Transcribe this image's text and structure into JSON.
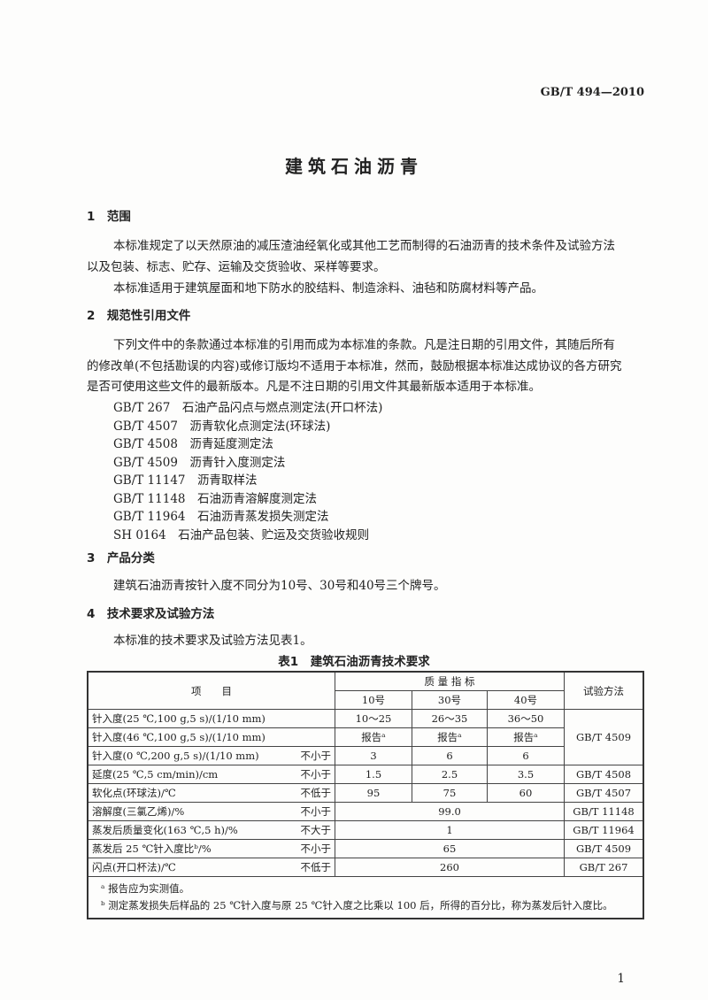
{
  "header": {
    "code": "GB/T 494—2010"
  },
  "title": "建筑石油沥青",
  "sections": [
    {
      "heading": "1　范围",
      "paragraphs": [
        "本标准规定了以天然原油的减压渣油经氧化或其他工艺而制得的石油沥青的技术条件及试验方法",
        "以及包装、标志、贮存、运输及交货验收、采样等要求。",
        "本标准适用于建筑屋面和地下防水的胶结料、制造涂料、油毡和防腐材料等产品。"
      ]
    },
    {
      "heading": "2　规范性引用文件",
      "paragraphs": [
        "下列文件中的条款通过本标准的引用而成为本标准的条款。凡是注日期的引用文件，其随后所有",
        "的修改单(不包括勘误的内容)或修订版均不适用于本标准，然而，鼓励根据本标准达成协议的各方研究",
        "是否可使用这些文件的最新版本。凡是不注日期的引用文件其最新版本适用于本标准。"
      ],
      "refs": [
        "GB/T 267　石油产品闪点与燃点测定法(开口杯法)",
        "GB/T 4507　沥青软化点测定法(环球法)",
        "GB/T 4508　沥青延度测定法",
        "GB/T 4509　沥青针入度测定法",
        "GB/T 11147　沥青取样法",
        "GB/T 11148　石油沥青溶解度测定法",
        "GB/T 11964　石油沥青蒸发损失测定法",
        "SH 0164　石油产品包装、贮运及交货验收规则"
      ]
    },
    {
      "heading": "3　产品分类",
      "paragraphs": [
        "建筑石油沥青按针入度不同分为10号、30号和40号三个牌号。"
      ]
    },
    {
      "heading": "4　技术要求及试验方法",
      "paragraphs": [
        "本标准的技术要求及试验方法见表1。"
      ]
    }
  ],
  "table": {
    "caption": "表1　建筑石油沥青技术要求",
    "head": {
      "item": "项　　目",
      "quality": "质 量 指 标",
      "grades": [
        "10号",
        "30号",
        "40号"
      ],
      "method": "试验方法"
    },
    "rows": [
      {
        "item": "针入度(25 ℃,100 g,5 s)/(1/10 mm)",
        "q": "",
        "v": [
          "10～25",
          "26～35",
          "36～50"
        ]
      },
      {
        "item": "针入度(46 ℃,100 g,5 s)/(1/10 mm)",
        "q": "",
        "v": [
          "报告ᵃ",
          "报告ᵃ",
          "报告ᵃ"
        ]
      },
      {
        "item": "针入度(0 ℃,200 g,5 s)/(1/10 mm)",
        "q": "不小于",
        "v": [
          "3",
          "6",
          "6"
        ]
      },
      {
        "item": "延度(25 ℃,5 cm/min)/cm",
        "q": "不小于",
        "v": [
          "1.5",
          "2.5",
          "3.5"
        ],
        "m": "GB/T 4508"
      },
      {
        "item": "软化点(环球法)/℃",
        "q": "不低于",
        "v": [
          "95",
          "75",
          "60"
        ],
        "m": "GB/T 4507"
      },
      {
        "item": "溶解度(三氯乙烯)/%",
        "q": "不小于",
        "v": "99.0",
        "m": "GB/T 11148"
      },
      {
        "item": "蒸发后质量变化(163 ℃,5 h)/%",
        "q": "不大于",
        "v": "1",
        "m": "GB/T 11964"
      },
      {
        "item": "蒸发后 25 ℃针入度比ᵇ/%",
        "q": "不小于",
        "v": "65",
        "m": "GB/T 4509"
      },
      {
        "item": "闪点(开口杯法)/℃",
        "q": "不低于",
        "v": "260",
        "m": "GB/T 267"
      }
    ],
    "method_merged": "GB/T 4509",
    "footnotes": [
      "ᵃ 报告应为实测值。",
      "ᵇ 测定蒸发损失后样品的 25 ℃针入度与原 25 ℃针入度之比乘以 100 后，所得的百分比，称为蒸发后针入度比。"
    ]
  },
  "page_number": "1"
}
